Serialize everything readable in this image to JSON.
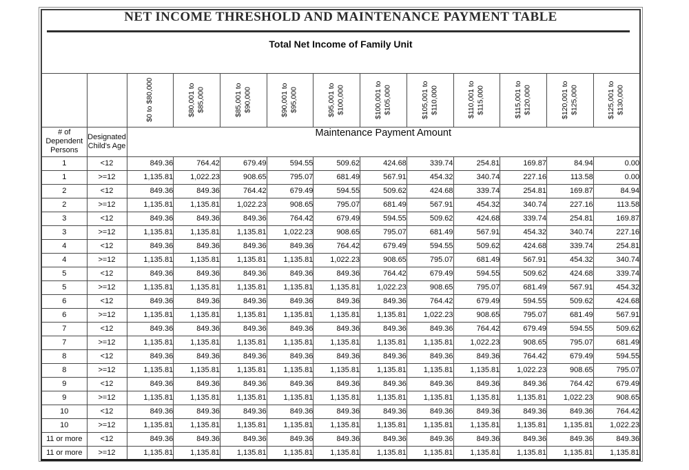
{
  "document": {
    "title": "NET INCOME THRESHOLD AND MAINTENANCE PAYMENT TABLE",
    "subtitle": "Total Net Income of Family Unit"
  },
  "table": {
    "corner_headers": [
      "# of Dependent Persons",
      "Designated Child's Age"
    ],
    "payment_header": "Maintenance Payment Amount",
    "income_brackets": [
      "$0 to $80,000",
      "$80,001 to $85,000",
      "$85,001 to $90,000",
      "$90,001 to $95,000",
      "$95,001 to $100,000",
      "$100,001 to $105,000",
      "$105,001 to $110,000",
      "$110,001 to $115,000",
      "$115,001 to $120,000",
      "$120,001 to $125,000",
      "$125,001 to $130,000"
    ],
    "rows": [
      {
        "dependents": "1",
        "age": "<12",
        "values": [
          "849.36",
          "764.42",
          "679.49",
          "594.55",
          "509.62",
          "424.68",
          "339.74",
          "254.81",
          "169.87",
          "84.94",
          "0.00"
        ]
      },
      {
        "dependents": "1",
        "age": ">=12",
        "values": [
          "1,135.81",
          "1,022.23",
          "908.65",
          "795.07",
          "681.49",
          "567.91",
          "454.32",
          "340.74",
          "227.16",
          "113.58",
          "0.00"
        ]
      },
      {
        "dependents": "2",
        "age": "<12",
        "values": [
          "849.36",
          "849.36",
          "764.42",
          "679.49",
          "594.55",
          "509.62",
          "424.68",
          "339.74",
          "254.81",
          "169.87",
          "84.94"
        ]
      },
      {
        "dependents": "2",
        "age": ">=12",
        "values": [
          "1,135.81",
          "1,135.81",
          "1,022.23",
          "908.65",
          "795.07",
          "681.49",
          "567.91",
          "454.32",
          "340.74",
          "227.16",
          "113.58"
        ]
      },
      {
        "dependents": "3",
        "age": "<12",
        "values": [
          "849.36",
          "849.36",
          "849.36",
          "764.42",
          "679.49",
          "594.55",
          "509.62",
          "424.68",
          "339.74",
          "254.81",
          "169.87"
        ]
      },
      {
        "dependents": "3",
        "age": ">=12",
        "values": [
          "1,135.81",
          "1,135.81",
          "1,135.81",
          "1,022.23",
          "908.65",
          "795.07",
          "681.49",
          "567.91",
          "454.32",
          "340.74",
          "227.16"
        ]
      },
      {
        "dependents": "4",
        "age": "<12",
        "values": [
          "849.36",
          "849.36",
          "849.36",
          "849.36",
          "764.42",
          "679.49",
          "594.55",
          "509.62",
          "424.68",
          "339.74",
          "254.81"
        ]
      },
      {
        "dependents": "4",
        "age": ">=12",
        "values": [
          "1,135.81",
          "1,135.81",
          "1,135.81",
          "1,135.81",
          "1,022.23",
          "908.65",
          "795.07",
          "681.49",
          "567.91",
          "454.32",
          "340.74"
        ]
      },
      {
        "dependents": "5",
        "age": "<12",
        "values": [
          "849.36",
          "849.36",
          "849.36",
          "849.36",
          "849.36",
          "764.42",
          "679.49",
          "594.55",
          "509.62",
          "424.68",
          "339.74"
        ]
      },
      {
        "dependents": "5",
        "age": ">=12",
        "values": [
          "1,135.81",
          "1,135.81",
          "1,135.81",
          "1,135.81",
          "1,135.81",
          "1,022.23",
          "908.65",
          "795.07",
          "681.49",
          "567.91",
          "454.32"
        ]
      },
      {
        "dependents": "6",
        "age": "<12",
        "values": [
          "849.36",
          "849.36",
          "849.36",
          "849.36",
          "849.36",
          "849.36",
          "764.42",
          "679.49",
          "594.55",
          "509.62",
          "424.68"
        ]
      },
      {
        "dependents": "6",
        "age": ">=12",
        "values": [
          "1,135.81",
          "1,135.81",
          "1,135.81",
          "1,135.81",
          "1,135.81",
          "1,135.81",
          "1,022.23",
          "908.65",
          "795.07",
          "681.49",
          "567.91"
        ]
      },
      {
        "dependents": "7",
        "age": "<12",
        "values": [
          "849.36",
          "849.36",
          "849.36",
          "849.36",
          "849.36",
          "849.36",
          "849.36",
          "764.42",
          "679.49",
          "594.55",
          "509.62"
        ]
      },
      {
        "dependents": "7",
        "age": ">=12",
        "values": [
          "1,135.81",
          "1,135.81",
          "1,135.81",
          "1,135.81",
          "1,135.81",
          "1,135.81",
          "1,135.81",
          "1,022.23",
          "908.65",
          "795.07",
          "681.49"
        ]
      },
      {
        "dependents": "8",
        "age": "<12",
        "values": [
          "849.36",
          "849.36",
          "849.36",
          "849.36",
          "849.36",
          "849.36",
          "849.36",
          "849.36",
          "764.42",
          "679.49",
          "594.55"
        ]
      },
      {
        "dependents": "8",
        "age": ">=12",
        "values": [
          "1,135.81",
          "1,135.81",
          "1,135.81",
          "1,135.81",
          "1,135.81",
          "1,135.81",
          "1,135.81",
          "1,135.81",
          "1,022.23",
          "908.65",
          "795.07"
        ]
      },
      {
        "dependents": "9",
        "age": "<12",
        "values": [
          "849.36",
          "849.36",
          "849.36",
          "849.36",
          "849.36",
          "849.36",
          "849.36",
          "849.36",
          "849.36",
          "764.42",
          "679.49"
        ]
      },
      {
        "dependents": "9",
        "age": ">=12",
        "values": [
          "1,135.81",
          "1,135.81",
          "1,135.81",
          "1,135.81",
          "1,135.81",
          "1,135.81",
          "1,135.81",
          "1,135.81",
          "1,135.81",
          "1,022.23",
          "908.65"
        ]
      },
      {
        "dependents": "10",
        "age": "<12",
        "values": [
          "849.36",
          "849.36",
          "849.36",
          "849.36",
          "849.36",
          "849.36",
          "849.36",
          "849.36",
          "849.36",
          "849.36",
          "764.42"
        ]
      },
      {
        "dependents": "10",
        "age": ">=12",
        "values": [
          "1,135.81",
          "1,135.81",
          "1,135.81",
          "1,135.81",
          "1,135.81",
          "1,135.81",
          "1,135.81",
          "1,135.81",
          "1,135.81",
          "1,135.81",
          "1,022.23"
        ]
      },
      {
        "dependents": "11 or more",
        "age": "<12",
        "values": [
          "849.36",
          "849.36",
          "849.36",
          "849.36",
          "849.36",
          "849.36",
          "849.36",
          "849.36",
          "849.36",
          "849.36",
          "849.36"
        ]
      },
      {
        "dependents": "11 or more",
        "age": ">=12",
        "values": [
          "1,135.81",
          "1,135.81",
          "1,135.81",
          "1,135.81",
          "1,135.81",
          "1,135.81",
          "1,135.81",
          "1,135.81",
          "1,135.81",
          "1,135.81",
          "1,135.81"
        ]
      }
    ]
  },
  "colors": {
    "grid": "#474747",
    "rule": "#2e2e2e",
    "text": "#0a0a0a"
  }
}
